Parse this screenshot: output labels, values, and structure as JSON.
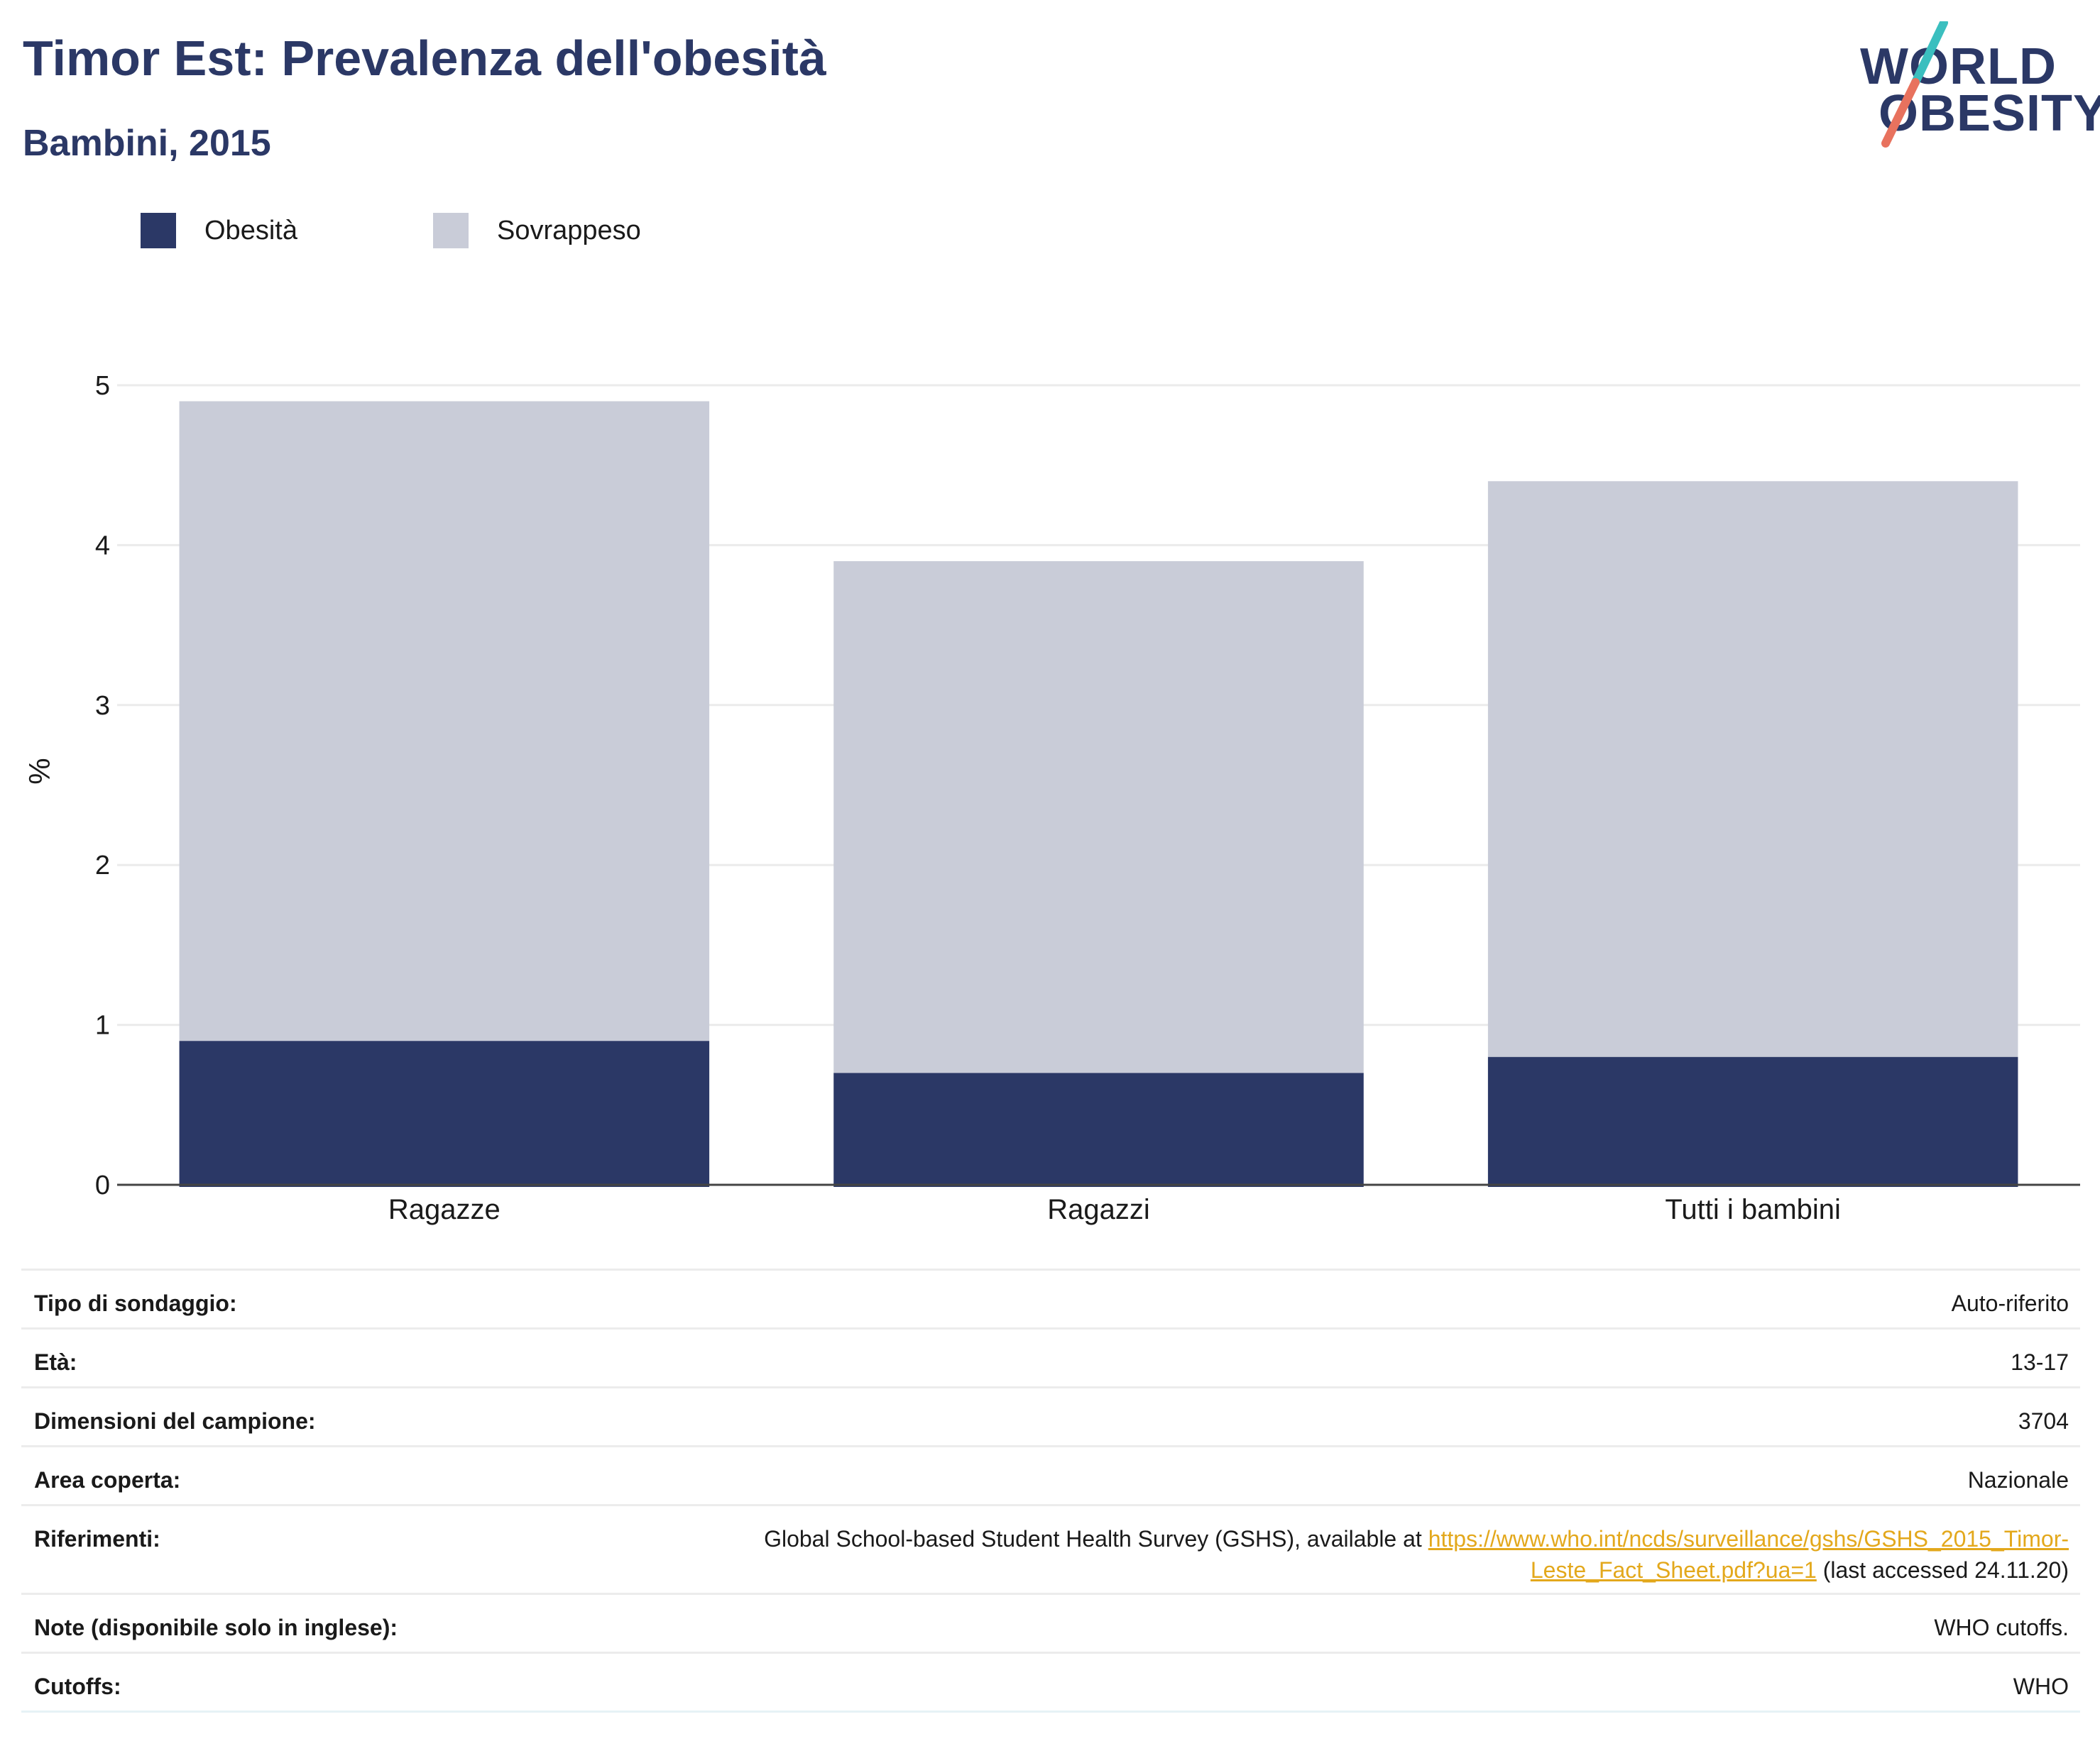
{
  "header": {
    "title": "Timor Est: Prevalenza dell'obesità",
    "subtitle": "Bambini, 2015"
  },
  "logo": {
    "line1": "WORLD",
    "line2": "OBESITY",
    "colors": {
      "text": "#2b3866",
      "slash_top": "#3bbfbf",
      "slash_bottom": "#e8725e"
    }
  },
  "colors": {
    "obesity": "#2b3866",
    "overweight": "#c9ccd8",
    "gridline": "#ebebeb",
    "axis": "#444444",
    "link": "#e3a81c"
  },
  "chart_data": {
    "type": "bar",
    "stacked": true,
    "categories": [
      "Ragazze",
      "Ragazzi",
      "Tutti i bambini"
    ],
    "series": [
      {
        "name": "Obesità",
        "values": [
          0.9,
          0.7,
          0.8
        ]
      },
      {
        "name": "Sovrappeso",
        "values": [
          4.0,
          3.2,
          3.6
        ]
      }
    ],
    "ylabel": "%",
    "ylim": [
      0,
      5
    ],
    "yticks": [
      0,
      1,
      2,
      3,
      4,
      5
    ],
    "grid": true,
    "legend_position": "top-left"
  },
  "info": {
    "survey_type": {
      "label": "Tipo di sondaggio:",
      "value": "Auto-riferito"
    },
    "age": {
      "label": "Età:",
      "value": "13-17"
    },
    "sample_size": {
      "label": "Dimensioni del campione:",
      "value": "3704"
    },
    "area": {
      "label": "Area coperta:",
      "value": "Nazionale"
    },
    "references": {
      "label": "Riferimenti:",
      "text_before": "Global School-based Student Health Survey (GSHS), available at ",
      "link": "https://www.who.int/ncds/surveillance/gshs/GSHS_2015_Timor-Leste_Fact_Sheet.pdf?ua=1",
      "text_after": " (last accessed 24.11.20)"
    },
    "notes": {
      "label": "Note (disponibile solo in inglese):",
      "value": "WHO cutoffs."
    },
    "cutoffs": {
      "label": "Cutoffs:",
      "value": "WHO"
    }
  }
}
